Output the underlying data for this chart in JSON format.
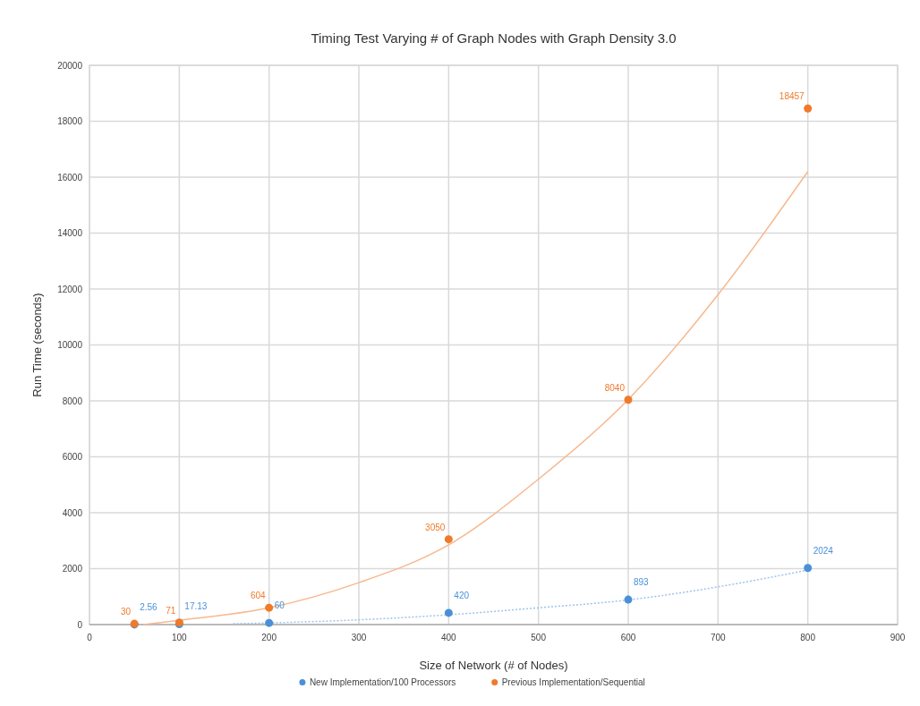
{
  "chart_data": {
    "type": "scatter",
    "title": "Timing Test Varying # of Graph Nodes with Graph Density 3.0",
    "xlabel": "Size of Network  (# of Nodes)",
    "ylabel": "Run Time (seconds)",
    "xlim": [
      0,
      900
    ],
    "xticks": [
      0,
      100,
      200,
      300,
      400,
      500,
      600,
      700,
      800,
      900
    ],
    "ylim": [
      0,
      20000
    ],
    "yticks": [
      0,
      2000,
      4000,
      6000,
      8000,
      10000,
      12000,
      14000,
      16000,
      18000,
      20000
    ],
    "grid": true,
    "legend": "bottom",
    "marker": "circle",
    "series": [
      {
        "name": "New Implementation/100 Processors",
        "color": "#4a90d9",
        "x": [
          50,
          100,
          200,
          400,
          600,
          800
        ],
        "values": [
          2.56,
          17.13,
          60,
          420,
          893,
          2024
        ],
        "value_labels": [
          "2.56",
          "17.13",
          "60",
          "420",
          "893",
          "2024"
        ]
      },
      {
        "name": "Previous Implementation/Sequential",
        "color": "#f07a2a",
        "x": [
          50,
          100,
          200,
          400,
          600,
          800
        ],
        "values": [
          30,
          71,
          604,
          3050,
          8040,
          18457
        ],
        "value_labels": [
          "30",
          "71",
          "604",
          "3050",
          "8040",
          "18457"
        ]
      },
      {
        "type": "line",
        "color": "#9fc3ea",
        "line_style": "dotted",
        "marker": "none",
        "x": [
          160,
          200,
          300,
          400,
          500,
          600,
          700,
          800
        ],
        "values": [
          30,
          60,
          170,
          350,
          600,
          880,
          1350,
          1950
        ]
      },
      {
        "type": "line",
        "color": "#f6b88e",
        "line_style": "solid",
        "marker": "none",
        "x": [
          60,
          100,
          200,
          300,
          400,
          500,
          600,
          700,
          800
        ],
        "values": [
          0,
          150,
          600,
          1500,
          2850,
          5200,
          8050,
          11800,
          16200
        ]
      }
    ]
  }
}
